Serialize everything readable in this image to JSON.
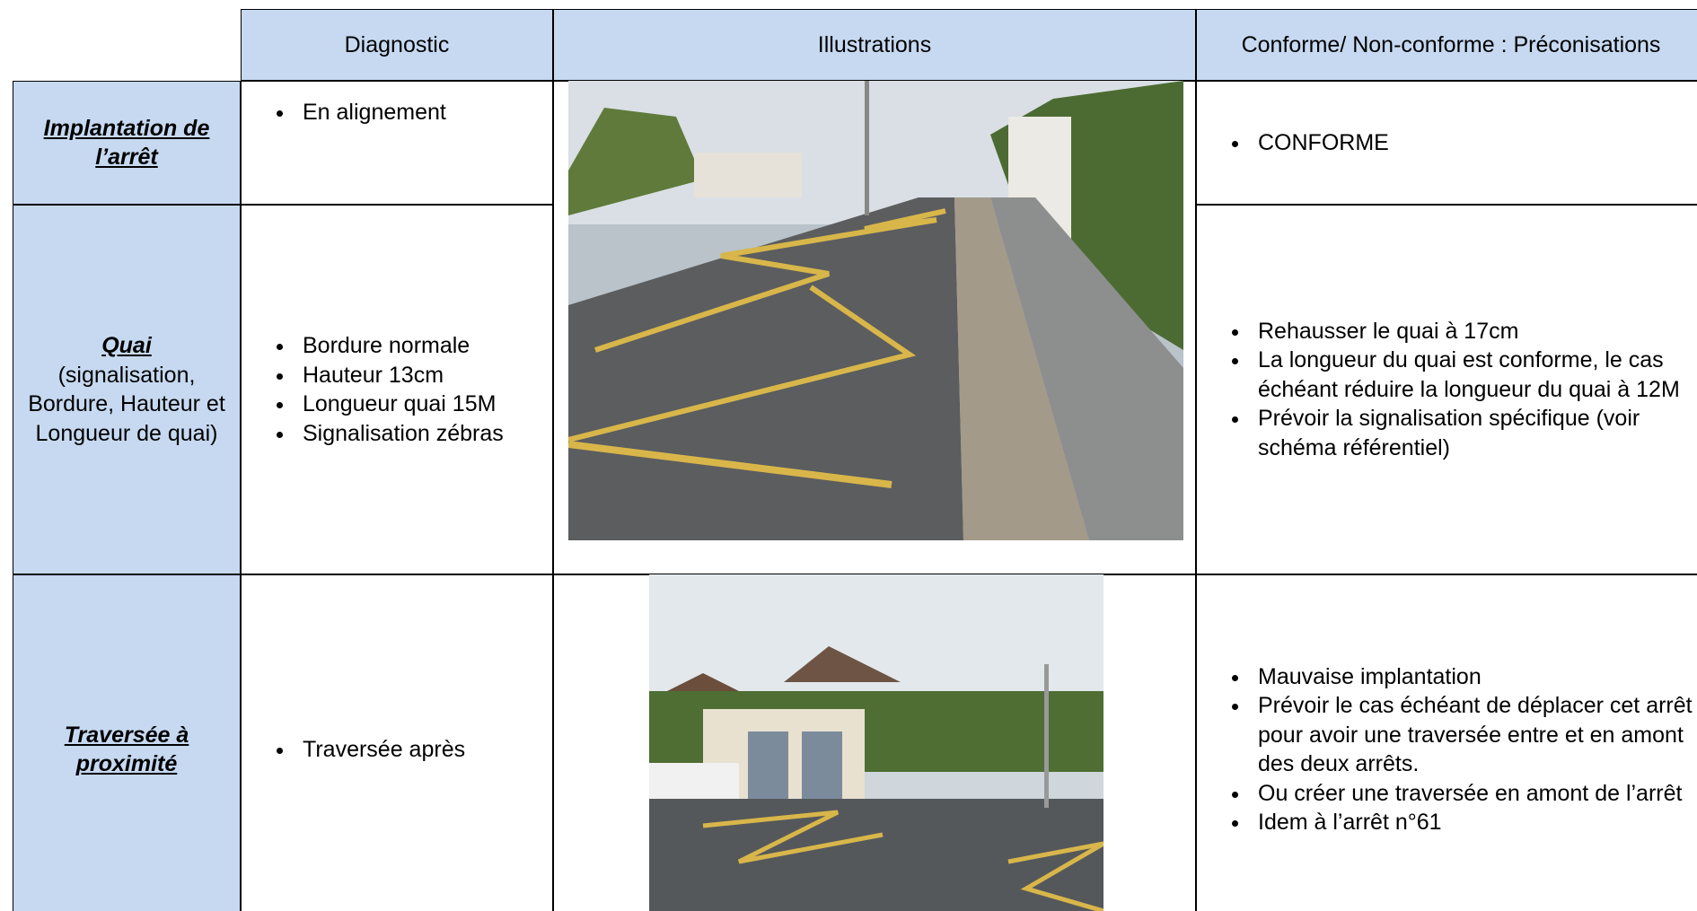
{
  "header": {
    "columns": [
      "Diagnostic",
      "Illustrations",
      "Conforme/ Non-conforme : Préconisations"
    ]
  },
  "rows": [
    {
      "title": "Implantation de l’arrêt",
      "subtitle": null,
      "diagnostic": [
        "En alignement"
      ],
      "recommendations": [
        "CONFORME"
      ]
    },
    {
      "title": "Quai",
      "subtitle": "(signalisation, Bordure, Hauteur et Longueur de quai)",
      "diagnostic": [
        "Bordure normale",
        "Hauteur 13cm",
        "Longueur quai 15M",
        "Signalisation zébras"
      ],
      "recommendations": [
        "Rehausser le quai à 17cm",
        "La longueur du quai est conforme, le cas échéant réduire la longueur du quai à 12M",
        "Prévoir la signalisation spécifique (voir schéma référentiel)"
      ]
    },
    {
      "title": "Traversée à proximité",
      "subtitle": null,
      "diagnostic": [
        "Traversée après"
      ],
      "recommendations": [
        "Mauvaise implantation",
        "Prévoir le cas échéant de déplacer cet arrêt pour avoir une traversée entre et en amont des deux arrêts.",
        "Ou créer une traversée en amont de l’arrêt",
        "Idem à l’arrêt n°61"
      ]
    }
  ]
}
